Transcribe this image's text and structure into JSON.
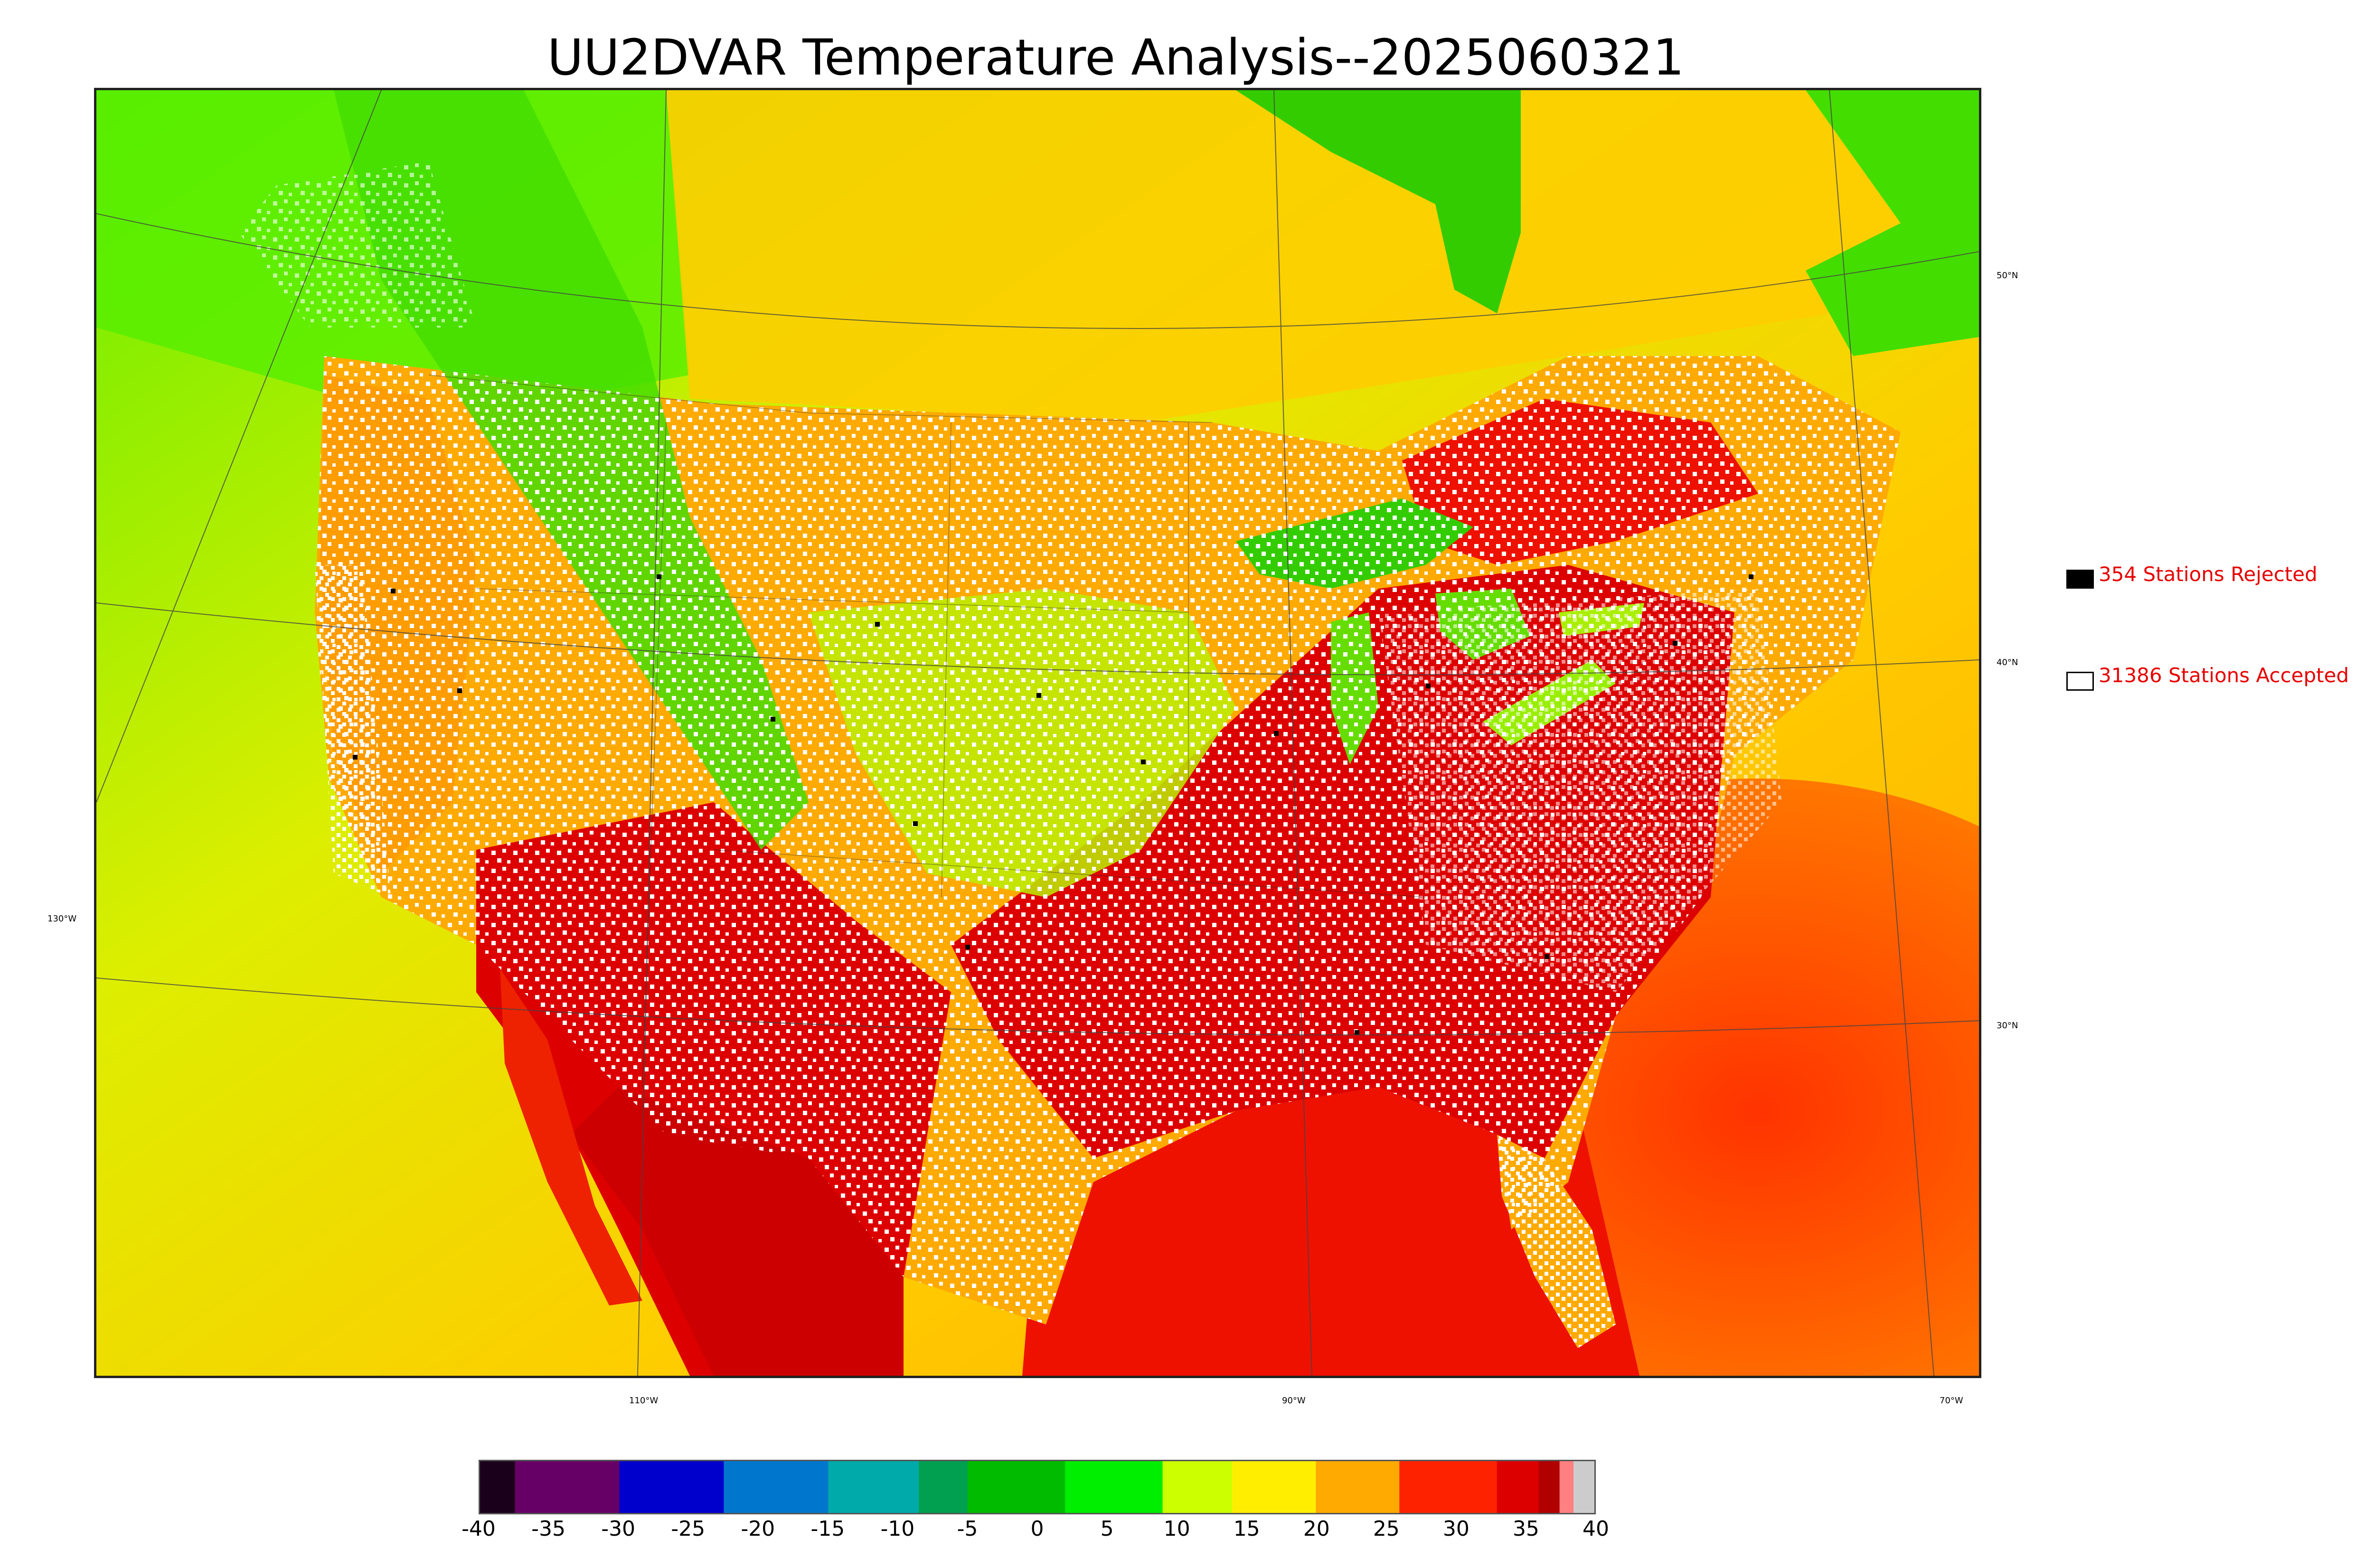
{
  "title": "UU2DVAR Temperature Analysis--2025060321",
  "map": {
    "lat_labels": [
      "50°N",
      "40°N",
      "30°N"
    ],
    "lon_labels": [
      "130°W",
      "110°W",
      "90°W",
      "70°W"
    ]
  },
  "legend": {
    "rejected": {
      "label": "354 Stations Rejected",
      "color": "#000000"
    },
    "accepted": {
      "label": "31386 Stations Accepted",
      "color": "#ffffff"
    }
  },
  "colorbar": {
    "ticks": [
      "-40",
      "-35",
      "-30",
      "-25",
      "-20",
      "-15",
      "-10",
      "-5",
      "0",
      "5",
      "10",
      "15",
      "20",
      "25",
      "30",
      "35",
      "40"
    ],
    "range": [
      -40,
      40
    ],
    "stops": [
      {
        "from": -40,
        "to": -37.5,
        "color": "#1a001a"
      },
      {
        "from": -37.5,
        "to": -30,
        "color": "#660066"
      },
      {
        "from": -30,
        "to": -22.5,
        "color": "#0000cc"
      },
      {
        "from": -22.5,
        "to": -15,
        "color": "#0077cc"
      },
      {
        "from": -15,
        "to": -8.5,
        "color": "#00aaaa"
      },
      {
        "from": -8.5,
        "to": -5,
        "color": "#00a050"
      },
      {
        "from": -5,
        "to": 2,
        "color": "#00bb00"
      },
      {
        "from": 2,
        "to": 9,
        "color": "#00ee00"
      },
      {
        "from": 9,
        "to": 14,
        "color": "#ccff00"
      },
      {
        "from": 14,
        "to": 20,
        "color": "#ffee00"
      },
      {
        "from": 20,
        "to": 26,
        "color": "#ffaa00"
      },
      {
        "from": 26,
        "to": 33,
        "color": "#ff2200"
      },
      {
        "from": 33,
        "to": 36,
        "color": "#dd0000"
      },
      {
        "from": 36,
        "to": 37.5,
        "color": "#b00000"
      },
      {
        "from": 37.5,
        "to": 38.5,
        "color": "#ff8080"
      },
      {
        "from": 38.5,
        "to": 40,
        "color": "#cccccc"
      }
    ]
  }
}
